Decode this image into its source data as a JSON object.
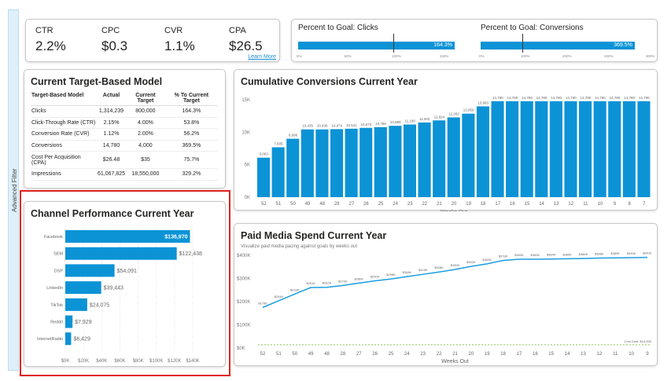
{
  "filter_label": "Advanced Filter",
  "kpis": [
    {
      "label": "CTR",
      "value": "2.2%"
    },
    {
      "label": "CPC",
      "value": "$0.3"
    },
    {
      "label": "CVR",
      "value": "1.1%"
    },
    {
      "label": "CPA",
      "value": "$26.5"
    }
  ],
  "learn_more": "Learn More",
  "goals": [
    {
      "title": "Percent to Goal: Clicks",
      "value": 164.3,
      "label": "164.3%",
      "max": 175,
      "ticks": [
        "0%",
        "50%",
        "100%",
        "150%"
      ]
    },
    {
      "title": "Percent to Goal: Conversions",
      "value": 369.5,
      "label": "369.5%",
      "max": 400,
      "ticks": [
        "0%",
        "100%",
        "200%",
        "300%",
        "400%"
      ]
    }
  ],
  "target_model": {
    "title": "Current Target-Based Model",
    "headers": [
      "Target-Based Model",
      "Actual",
      "Current Target",
      "% To Current Target"
    ],
    "rows": [
      [
        "Clicks",
        "1,314,239",
        "800,000",
        "164.3%"
      ],
      [
        "Click-Through Rate (CTR)",
        "2.15%",
        "4.00%",
        "53.8%"
      ],
      [
        "Conversion Rate (CVR)",
        "1.12%",
        "2.00%",
        "56.2%"
      ],
      [
        "Conversions",
        "14,780",
        "4,000",
        "369.5%"
      ],
      [
        "Cost Per Acquisition (CPA)",
        "$26.48",
        "$35",
        "75.7%"
      ],
      [
        "Impressions",
        "61,067,825",
        "18,550,000",
        "329.2%"
      ]
    ]
  },
  "chart_data": [
    {
      "type": "bar",
      "title": "Cumulative Conversions Current Year",
      "xlabel": "Weeks Out",
      "ylabel": "",
      "ylim": [
        0,
        15000
      ],
      "yticks": [
        "0K",
        "5K",
        "10K",
        "15K"
      ],
      "categories": [
        "52",
        "51",
        "50",
        "49",
        "48",
        "28",
        "27",
        "26",
        "25",
        "24",
        "23",
        "22",
        "21",
        "20",
        "19",
        "18",
        "17",
        "16",
        "15",
        "14",
        "13",
        "12",
        "11",
        "10",
        "9",
        "8",
        "7"
      ],
      "values": [
        6083,
        7685,
        8996,
        10435,
        10436,
        10474,
        10541,
        10673,
        10786,
        10989,
        11190,
        11502,
        11824,
        12282,
        12859,
        13983,
        14780,
        14780,
        14780,
        14780,
        14780,
        14780,
        14780,
        14780,
        14780,
        14780,
        14780
      ],
      "labels": [
        "6,083",
        "7,685",
        "8,996",
        "10,435",
        "10,436",
        "10,474",
        "10,541",
        "10,673",
        "10,786",
        "10,989",
        "11,190",
        "11,502",
        "11,824",
        "12,282",
        "12,859",
        "13,983",
        "14,780",
        "14,780",
        "14,780",
        "14,780",
        "14,780",
        "14,780",
        "14,780",
        "14,780",
        "14,780",
        "14,780",
        "14,780"
      ]
    },
    {
      "type": "bar",
      "orientation": "horizontal",
      "title": "Channel Performance Current Year",
      "xlim": [
        0,
        140000
      ],
      "xticks": [
        "$0K",
        "$20K",
        "$40K",
        "$60K",
        "$80K",
        "$100K",
        "$120K",
        "$140K"
      ],
      "categories": [
        "Facebook",
        "SEM",
        "DSP",
        "LinkedIn",
        "TikTok",
        "Reddit",
        "InternetRadio"
      ],
      "values": [
        136970,
        122438,
        54091,
        39443,
        24075,
        7929,
        6429
      ],
      "labels": [
        "$136,970",
        "$122,438",
        "$54,091",
        "$39,443",
        "$24,075",
        "$7,929",
        "$6,429"
      ]
    },
    {
      "type": "line",
      "title": "Paid Media Spend Current Year",
      "subtitle": "Visualize paid media pacing against goals by weeks out",
      "xlabel": "Weeks Out",
      "ylim": [
        0,
        400000
      ],
      "yticks": [
        "$0K",
        "$100K",
        "$200K",
        "$300K",
        "$400K"
      ],
      "categories": [
        "52",
        "51",
        "50",
        "49",
        "48",
        "28",
        "27",
        "26",
        "25",
        "24",
        "23",
        "22",
        "21",
        "20",
        "19",
        "18",
        "17",
        "16",
        "15",
        "14",
        "13",
        "12",
        "11",
        "10",
        "9"
      ],
      "values": [
        175,
        204,
        233,
        261,
        262,
        270,
        280,
        290,
        298,
        308,
        318,
        328,
        339,
        352,
        363,
        378,
        383,
        383,
        384,
        385,
        386,
        388,
        389,
        390,
        391
      ],
      "labels": [
        "$175K",
        "$204K",
        "$233K",
        "$261K",
        "$262K",
        "$270K",
        "$280K",
        "$290K",
        "$298K",
        "$308K",
        "$318K",
        "$328K",
        "$339K",
        "$352K",
        "$363K",
        "$378K",
        "$383K",
        "$383K",
        "$384K",
        "$385K",
        "$386K",
        "$388K",
        "$389K",
        "$390K",
        "$391K"
      ],
      "goal_line": {
        "value": 14000,
        "label": "Cost Goal: $14,000"
      }
    }
  ],
  "colors": {
    "bar": "#0b93d6",
    "goal": "#8fc45a"
  }
}
